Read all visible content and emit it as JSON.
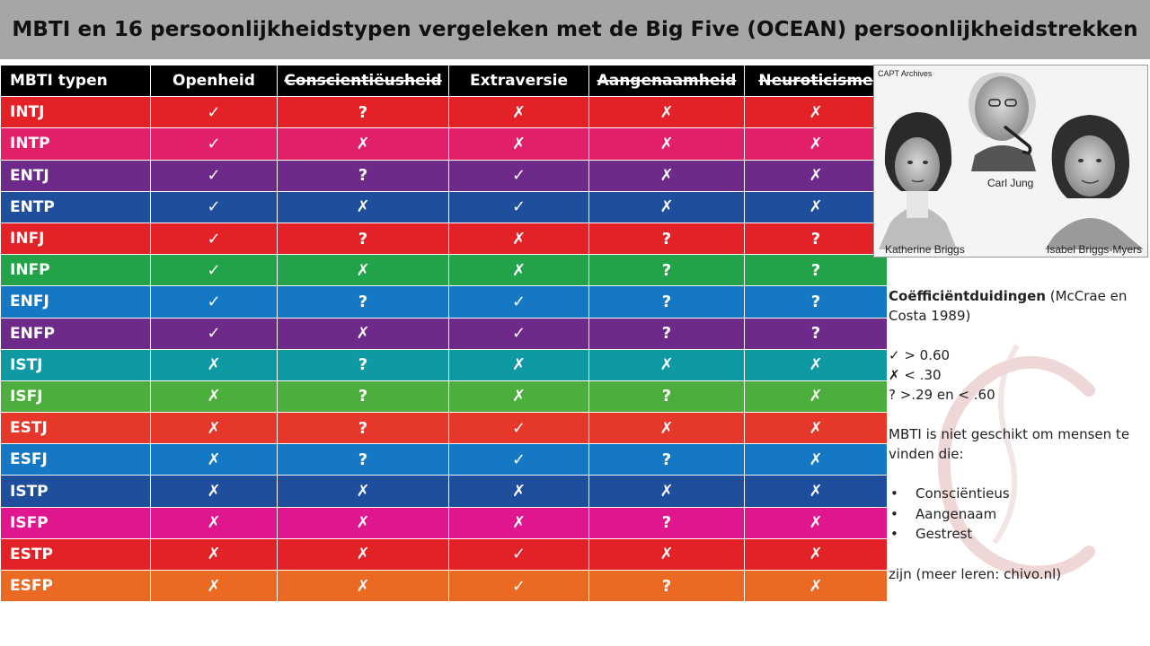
{
  "header": {
    "title": "MBTI en 16 persoonlijkheidstypen vergeleken met de Big Five (OCEAN) persoonlijkheidstrekken"
  },
  "table": {
    "columns": [
      {
        "label": "MBTI typen",
        "strike": false
      },
      {
        "label": "Openheid",
        "strike": false
      },
      {
        "label": "Conscientiëusheid",
        "strike": true
      },
      {
        "label": "Extraversie",
        "strike": false
      },
      {
        "label": "Aangenaamheid",
        "strike": true
      },
      {
        "label": "Neuroticisme",
        "strike": true
      }
    ],
    "rows": [
      {
        "type": "INTJ",
        "color": "#e32227",
        "cells": [
          "✓",
          "?",
          "✗",
          "✗",
          "✗"
        ]
      },
      {
        "type": "INTP",
        "color": "#e2206a",
        "cells": [
          "✓",
          "✗",
          "✗",
          "✗",
          "✗"
        ]
      },
      {
        "type": "ENTJ",
        "color": "#6e2a8a",
        "cells": [
          "✓",
          "?",
          "✓",
          "✗",
          "✗"
        ]
      },
      {
        "type": "ENTP",
        "color": "#1f4e9c",
        "cells": [
          "✓",
          "✗",
          "✓",
          "✗",
          "✗"
        ]
      },
      {
        "type": "INFJ",
        "color": "#e32227",
        "cells": [
          "✓",
          "?",
          "✗",
          "?",
          "?"
        ]
      },
      {
        "type": "INFP",
        "color": "#22a34a",
        "cells": [
          "✓",
          "✗",
          "✗",
          "?",
          "?"
        ]
      },
      {
        "type": "ENFJ",
        "color": "#1578c4",
        "cells": [
          "✓",
          "?",
          "✓",
          "?",
          "?"
        ]
      },
      {
        "type": "ENFP",
        "color": "#6e2a8a",
        "cells": [
          "✓",
          "✗",
          "✓",
          "?",
          "?"
        ]
      },
      {
        "type": "ISTJ",
        "color": "#0f9aa3",
        "cells": [
          "✗",
          "?",
          "✗",
          "✗",
          "✗"
        ]
      },
      {
        "type": "ISFJ",
        "color": "#4cae3c",
        "cells": [
          "✗",
          "?",
          "✗",
          "?",
          "✗"
        ]
      },
      {
        "type": "ESTJ",
        "color": "#e6382a",
        "cells": [
          "✗",
          "?",
          "✓",
          "✗",
          "✗"
        ]
      },
      {
        "type": "ESFJ",
        "color": "#1578c4",
        "cells": [
          "✗",
          "?",
          "✓",
          "?",
          "✗"
        ]
      },
      {
        "type": "ISTP",
        "color": "#1f4e9c",
        "cells": [
          "✗",
          "✗",
          "✗",
          "✗",
          "✗"
        ]
      },
      {
        "type": "ISFP",
        "color": "#e0168e",
        "cells": [
          "✗",
          "✗",
          "✗",
          "?",
          "✗"
        ]
      },
      {
        "type": "ESTP",
        "color": "#e32227",
        "cells": [
          "✗",
          "✗",
          "✓",
          "✗",
          "✗"
        ]
      },
      {
        "type": "ESFP",
        "color": "#ea6a23",
        "cells": [
          "✗",
          "✗",
          "✓",
          "?",
          "✗"
        ]
      }
    ]
  },
  "photo": {
    "credit": "CAPT Archives",
    "captions": [
      "Katherine Briggs",
      "Carl Jung",
      "Isabel Briggs-Myers"
    ]
  },
  "legend": {
    "heading_bold": "Coëfficiëntduidingen",
    "heading_rest": " (McCrae en Costa 1989)",
    "keys": [
      "✓ > 0.60",
      "✗ < .30",
      "? >.29 en < .60"
    ],
    "statement": "MBTI is niet geschikt om mensen te vinden die:",
    "bullets": [
      "Consciëntieus",
      "Aangenaam",
      "Gestrest"
    ],
    "footer": "zijn (meer leren: chivo.nl)"
  }
}
